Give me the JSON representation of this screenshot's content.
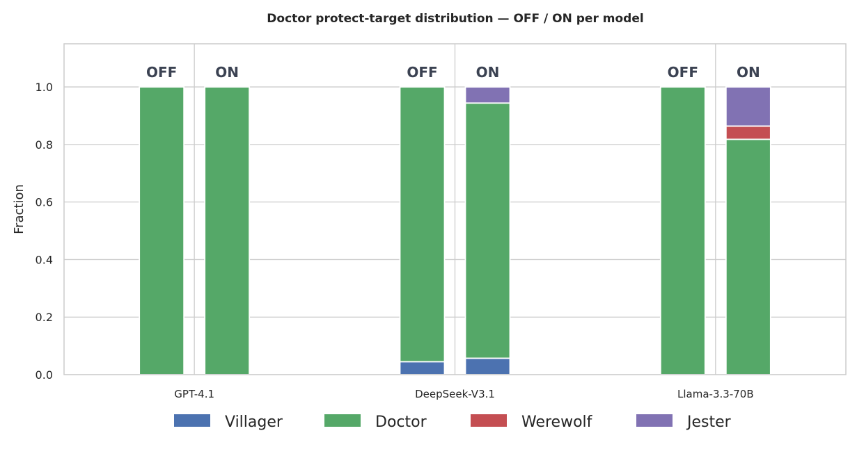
{
  "chart_data": {
    "type": "bar",
    "stacked": true,
    "title": "Doctor protect-target distribution — OFF / ON per model",
    "ylabel": "Fraction",
    "xlabel": "",
    "ylim": [
      0,
      1.15
    ],
    "yticks": [
      "0.0",
      "0.2",
      "0.4",
      "0.6",
      "0.8",
      "1.0"
    ],
    "grid": true,
    "legend_position": "bottom",
    "categories": [
      "GPT-4.1",
      "DeepSeek-V3.1",
      "Llama-3.3-70B"
    ],
    "conditions": [
      "OFF",
      "ON"
    ],
    "series": [
      {
        "name": "Villager",
        "color": "#4c72b0",
        "values": {
          "OFF": [
            0.0,
            0.045,
            0.0
          ],
          "ON": [
            0.0,
            0.057,
            0.0
          ]
        }
      },
      {
        "name": "Doctor",
        "color": "#55a868",
        "values": {
          "OFF": [
            1.0,
            0.955,
            1.0
          ],
          "ON": [
            1.0,
            0.887,
            0.818
          ]
        }
      },
      {
        "name": "Werewolf",
        "color": "#c44e52",
        "values": {
          "OFF": [
            0.0,
            0.0,
            0.0
          ],
          "ON": [
            0.0,
            0.0,
            0.046
          ]
        }
      },
      {
        "name": "Jester",
        "color": "#8172b3",
        "values": {
          "OFF": [
            0.0,
            0.0,
            0.0
          ],
          "ON": [
            0.0,
            0.056,
            0.136
          ]
        }
      }
    ]
  }
}
